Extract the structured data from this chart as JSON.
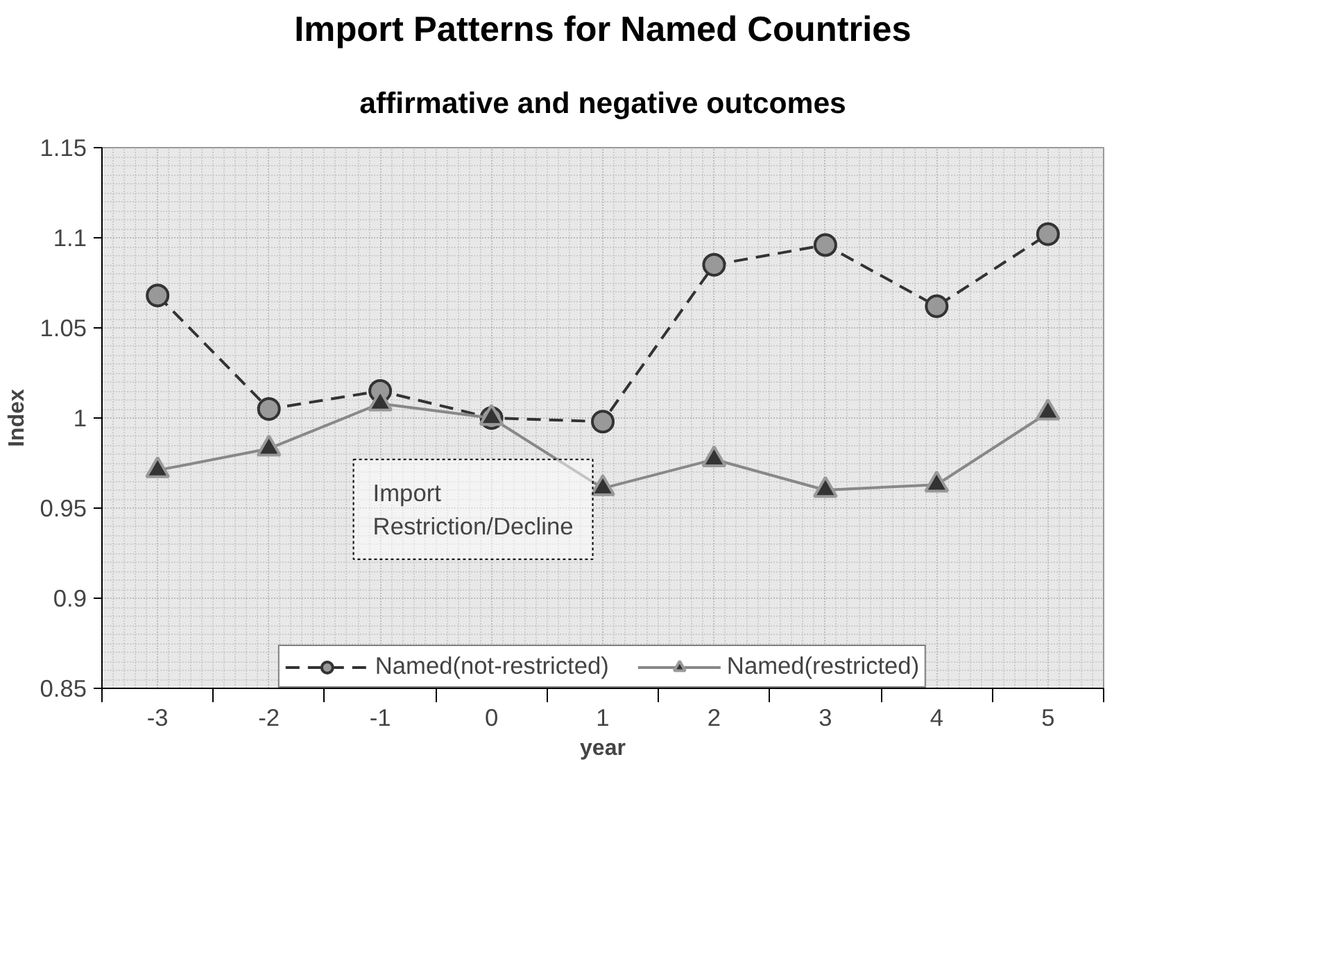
{
  "chart_data": {
    "type": "line",
    "title": "Import Patterns for Named Countries",
    "subtitle": "affirmative and negative outcomes",
    "xlabel": "year",
    "ylabel": "Index",
    "categories": [
      "-3",
      "-2",
      "-1",
      "0",
      "1",
      "2",
      "3",
      "4",
      "5"
    ],
    "series": [
      {
        "name": "Named(not-restricted)",
        "color": "#333333",
        "marker": "circle",
        "line_style": "dashed",
        "values": [
          1.068,
          1.005,
          1.015,
          1.0,
          0.998,
          1.085,
          1.096,
          1.062,
          1.102
        ]
      },
      {
        "name": "Named(restricted)",
        "color": "#888888",
        "marker": "triangle",
        "line_style": "solid",
        "values": [
          0.971,
          0.983,
          1.008,
          1.0,
          0.961,
          0.977,
          0.96,
          0.963,
          1.003
        ]
      }
    ],
    "ylim": [
      0.85,
      1.15
    ],
    "yticks": [
      0.85,
      0.9,
      0.95,
      1,
      1.05,
      1.1,
      1.15
    ],
    "grid": true,
    "legend": "bottom",
    "annotations": [
      "Import Restriction/Decline"
    ]
  }
}
